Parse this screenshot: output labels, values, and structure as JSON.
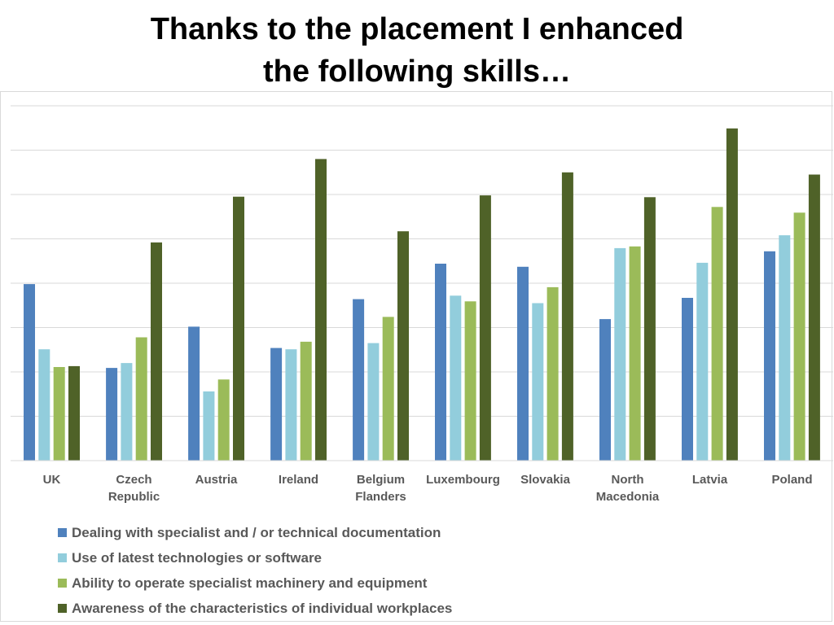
{
  "title": {
    "line1": "Thanks to the placement I enhanced",
    "line2": "the following skills…"
  },
  "chart_data": {
    "type": "bar",
    "title": "Thanks to the placement I enhanced the following skills…",
    "categories": [
      [
        "UK"
      ],
      [
        "Czech",
        "Republic"
      ],
      [
        "Austria"
      ],
      [
        "Ireland"
      ],
      [
        "Belgium",
        "Flanders"
      ],
      [
        "Luxembourg"
      ],
      [
        "Slovakia"
      ],
      [
        "North",
        "Macedonia"
      ],
      [
        "Latvia"
      ],
      [
        "Poland"
      ]
    ],
    "series": [
      {
        "name": "Dealing with specialist and / or technical documentation",
        "color": "#4f81bd",
        "values": [
          3.98,
          2.09,
          3.02,
          2.54,
          3.64,
          4.44,
          4.37,
          3.19,
          3.67,
          4.72
        ]
      },
      {
        "name": "Use of latest technologies or software",
        "color": "#92cddc",
        "values": [
          2.51,
          2.2,
          1.56,
          2.51,
          2.65,
          3.72,
          3.55,
          4.79,
          4.46,
          5.08
        ]
      },
      {
        "name": "Ability to operate specialist machinery and equipment",
        "color": "#9bbb59",
        "values": [
          2.11,
          2.78,
          1.83,
          2.68,
          3.24,
          3.59,
          3.91,
          4.83,
          5.72,
          5.59
        ]
      },
      {
        "name": "Awareness of the characteristics of individual workplaces",
        "color": "#4f6228",
        "values": [
          2.13,
          4.92,
          5.95,
          6.8,
          5.17,
          5.98,
          6.5,
          5.94,
          7.49,
          6.45
        ]
      }
    ],
    "ylim": [
      0,
      8
    ],
    "grid": true,
    "legend_position": "bottom-left"
  }
}
